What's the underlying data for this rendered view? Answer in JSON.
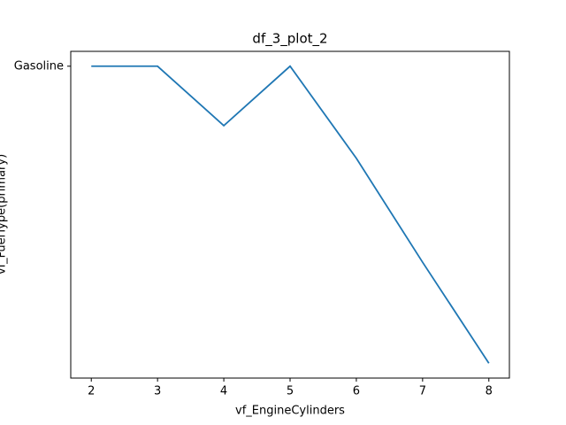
{
  "chart_data": {
    "type": "line",
    "title": "df_3_plot_2",
    "x_label": "vf_EngineCylinders",
    "y_label": "vf_FuelType(primary)",
    "x": [
      2,
      3,
      4,
      5,
      6,
      7,
      8
    ],
    "series": [
      {
        "color": "#1f77b4",
        "values": [
          1,
          1,
          0.8,
          1,
          0.69,
          0.34,
          0
        ]
      }
    ],
    "xlim": [
      1.69,
      8.31
    ],
    "xticks": [
      2,
      3,
      4,
      5,
      6,
      7,
      8
    ],
    "ylim": [
      -0.05,
      1.05
    ],
    "yticks": [
      {
        "value": 1,
        "label": "Gasoline"
      }
    ],
    "grid": false
  }
}
